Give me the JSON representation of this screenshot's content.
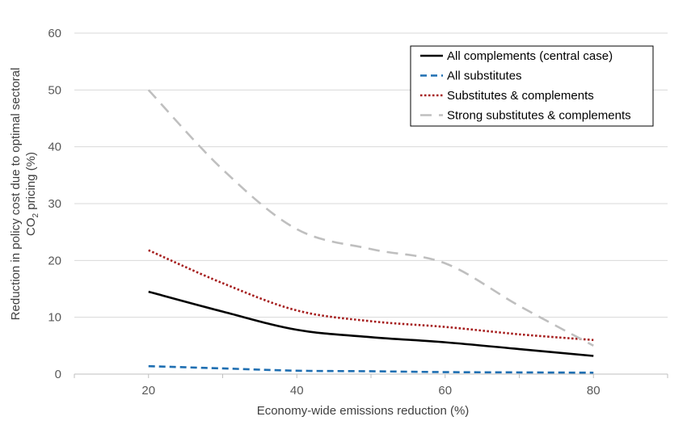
{
  "chart_data": {
    "type": "line",
    "xlabel": "Economy-wide emissions reduction (%)",
    "ylabel_line1": "Reduction in policy cost due to optimal sectoral",
    "ylabel_line2_prefix": "CO",
    "ylabel_line2_sub": "2",
    "ylabel_line2_suffix": " pricing (%)",
    "xlim": [
      10,
      90
    ],
    "ylim": [
      0,
      60
    ],
    "x_ticks": [
      20,
      40,
      60,
      80
    ],
    "y_ticks": [
      0,
      10,
      20,
      30,
      40,
      50,
      60
    ],
    "grid": "horizontal",
    "legend_position": "top-right",
    "series": [
      {
        "name": "All complements (central case)",
        "color": "#000000",
        "style": "solid",
        "x": [
          20,
          30,
          40,
          50,
          60,
          70,
          80
        ],
        "y": [
          14.5,
          11,
          7.8,
          6.5,
          5.6,
          4.4,
          3.2
        ]
      },
      {
        "name": "All substitutes",
        "color": "#1F6FB2",
        "style": "dashed",
        "x": [
          20,
          30,
          40,
          50,
          60,
          70,
          80
        ],
        "y": [
          1.4,
          1.0,
          0.6,
          0.5,
          0.35,
          0.3,
          0.25
        ]
      },
      {
        "name": "Substitutes & complements",
        "color": "#A51C1C",
        "style": "dotted",
        "x": [
          20,
          30,
          40,
          50,
          60,
          70,
          80
        ],
        "y": [
          21.8,
          16,
          11.2,
          9.3,
          8.3,
          7.0,
          6.0
        ]
      },
      {
        "name": "Strong substitutes & complements",
        "color": "#BFBFBF",
        "style": "longdash",
        "x": [
          20,
          30,
          40,
          50,
          60,
          70,
          80
        ],
        "y": [
          50,
          36,
          25.5,
          22,
          19.5,
          12,
          5
        ]
      }
    ]
  }
}
